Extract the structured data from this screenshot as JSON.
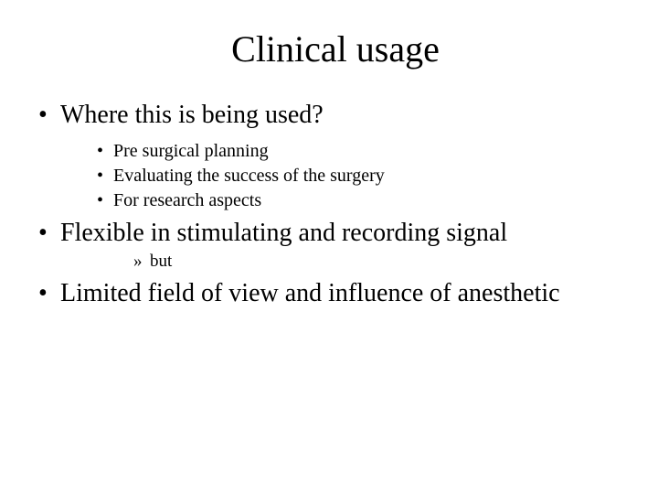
{
  "slide": {
    "background_color": "#ffffff",
    "text_color": "#000000",
    "font_family": "Georgia, 'Times New Roman', serif",
    "title": {
      "text": "Clinical usage",
      "fontsize": 40,
      "align": "center"
    },
    "bullets": {
      "level1_fontsize": 28,
      "level2_fontsize": 20,
      "level3_fontsize": 19,
      "level1_marker": "•",
      "level2_marker": "•",
      "level3_marker": "»",
      "items": [
        {
          "text": "Where this is being used?",
          "children": [
            {
              "text": "Pre surgical planning"
            },
            {
              "text": "Evaluating the success of the surgery"
            },
            {
              "text": "For research aspects"
            }
          ]
        },
        {
          "text": "Flexible in stimulating and recording signal",
          "subchildren": [
            {
              "text": "but"
            }
          ]
        },
        {
          "text": "Limited field of view and influence of anesthetic"
        }
      ]
    }
  }
}
